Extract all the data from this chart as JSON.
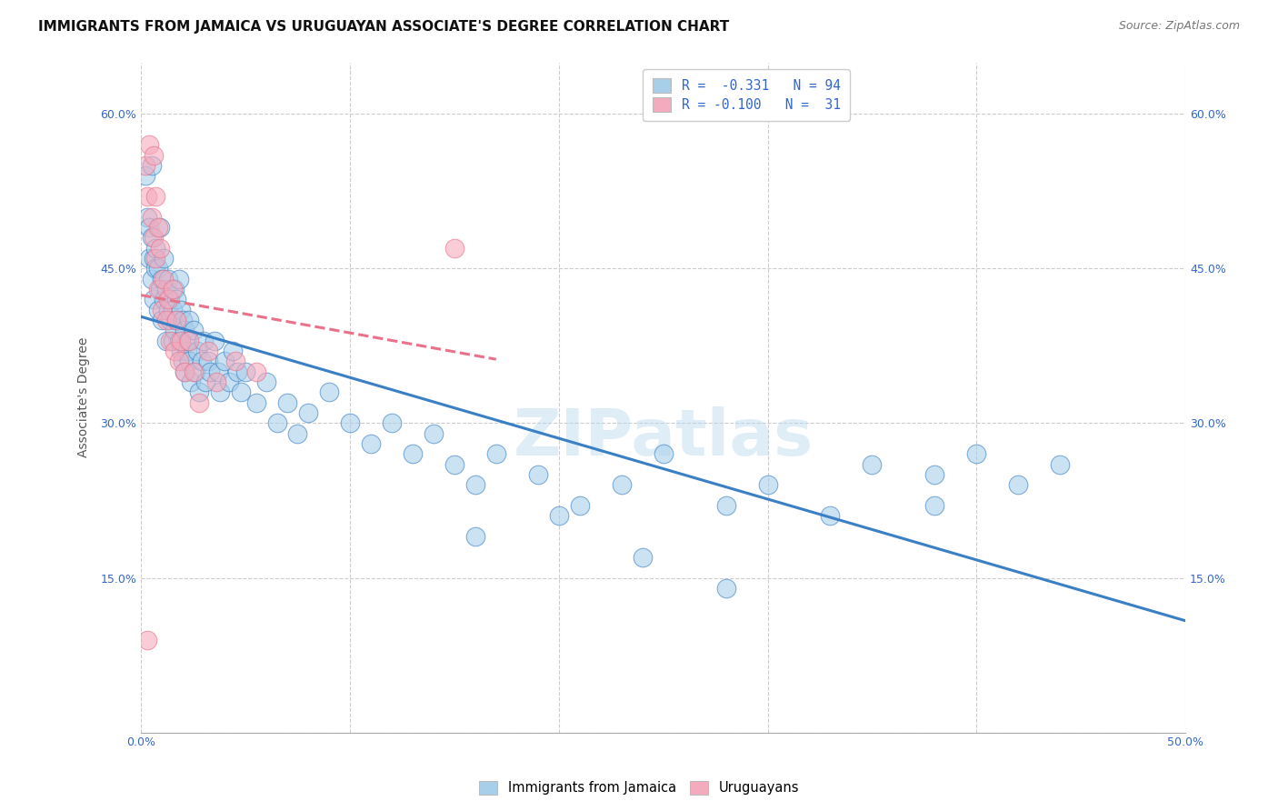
{
  "title": "IMMIGRANTS FROM JAMAICA VS URUGUAYAN ASSOCIATE'S DEGREE CORRELATION CHART",
  "source": "Source: ZipAtlas.com",
  "ylabel": "Associate's Degree",
  "xlim": [
    0.0,
    0.5
  ],
  "ylim": [
    0.0,
    0.65
  ],
  "xticks": [
    0.0,
    0.1,
    0.2,
    0.3,
    0.4,
    0.5
  ],
  "xticklabels": [
    "0.0%",
    "",
    "",
    "",
    "",
    "50.0%"
  ],
  "yticks": [
    0.0,
    0.15,
    0.3,
    0.45,
    0.6
  ],
  "yticklabels": [
    "",
    "15.0%",
    "30.0%",
    "45.0%",
    "60.0%"
  ],
  "legend_line1": "R =  -0.331   N = 94",
  "legend_line2": "R = -0.100   N =  31",
  "color_blue": "#A8CFEA",
  "color_pink": "#F5ABBE",
  "line_blue": "#3B7FC4",
  "line_pink": "#E8728A",
  "watermark": "ZIPatlas",
  "background_color": "#FFFFFF",
  "grid_color": "#CCCCCC",
  "title_fontsize": 11,
  "label_fontsize": 10,
  "tick_fontsize": 9,
  "source_fontsize": 9,
  "tick_color": "#3366CC",
  "jamaica_x": [
    0.002,
    0.003,
    0.004,
    0.004,
    0.005,
    0.005,
    0.005,
    0.006,
    0.006,
    0.007,
    0.007,
    0.008,
    0.008,
    0.009,
    0.009,
    0.01,
    0.01,
    0.011,
    0.011,
    0.012,
    0.012,
    0.013,
    0.013,
    0.014,
    0.014,
    0.015,
    0.015,
    0.016,
    0.016,
    0.017,
    0.017,
    0.018,
    0.018,
    0.019,
    0.019,
    0.02,
    0.02,
    0.021,
    0.021,
    0.022,
    0.022,
    0.023,
    0.023,
    0.024,
    0.025,
    0.026,
    0.027,
    0.028,
    0.029,
    0.03,
    0.031,
    0.032,
    0.033,
    0.035,
    0.037,
    0.038,
    0.04,
    0.042,
    0.044,
    0.046,
    0.048,
    0.05,
    0.055,
    0.06,
    0.065,
    0.07,
    0.075,
    0.08,
    0.09,
    0.1,
    0.11,
    0.12,
    0.13,
    0.14,
    0.15,
    0.16,
    0.17,
    0.19,
    0.21,
    0.23,
    0.25,
    0.28,
    0.3,
    0.33,
    0.35,
    0.38,
    0.4,
    0.42,
    0.44,
    0.16,
    0.2,
    0.24,
    0.28,
    0.38
  ],
  "jamaica_y": [
    0.54,
    0.5,
    0.46,
    0.49,
    0.48,
    0.44,
    0.55,
    0.42,
    0.46,
    0.45,
    0.47,
    0.41,
    0.45,
    0.43,
    0.49,
    0.4,
    0.44,
    0.42,
    0.46,
    0.38,
    0.43,
    0.41,
    0.44,
    0.4,
    0.42,
    0.38,
    0.41,
    0.43,
    0.39,
    0.42,
    0.4,
    0.44,
    0.38,
    0.41,
    0.37,
    0.4,
    0.36,
    0.39,
    0.35,
    0.37,
    0.38,
    0.36,
    0.4,
    0.34,
    0.39,
    0.35,
    0.37,
    0.33,
    0.36,
    0.38,
    0.34,
    0.36,
    0.35,
    0.38,
    0.35,
    0.33,
    0.36,
    0.34,
    0.37,
    0.35,
    0.33,
    0.35,
    0.32,
    0.34,
    0.3,
    0.32,
    0.29,
    0.31,
    0.33,
    0.3,
    0.28,
    0.3,
    0.27,
    0.29,
    0.26,
    0.24,
    0.27,
    0.25,
    0.22,
    0.24,
    0.27,
    0.22,
    0.24,
    0.21,
    0.26,
    0.22,
    0.27,
    0.24,
    0.26,
    0.19,
    0.21,
    0.17,
    0.14,
    0.25
  ],
  "uruguay_x": [
    0.002,
    0.003,
    0.004,
    0.005,
    0.006,
    0.006,
    0.007,
    0.007,
    0.008,
    0.008,
    0.009,
    0.01,
    0.011,
    0.012,
    0.013,
    0.014,
    0.015,
    0.016,
    0.017,
    0.018,
    0.019,
    0.021,
    0.023,
    0.025,
    0.028,
    0.032,
    0.036,
    0.045,
    0.055,
    0.15,
    0.003
  ],
  "uruguay_y": [
    0.55,
    0.52,
    0.57,
    0.5,
    0.48,
    0.56,
    0.52,
    0.46,
    0.43,
    0.49,
    0.47,
    0.41,
    0.44,
    0.4,
    0.42,
    0.38,
    0.43,
    0.37,
    0.4,
    0.36,
    0.38,
    0.35,
    0.38,
    0.35,
    0.32,
    0.37,
    0.34,
    0.36,
    0.35,
    0.47,
    0.09
  ]
}
